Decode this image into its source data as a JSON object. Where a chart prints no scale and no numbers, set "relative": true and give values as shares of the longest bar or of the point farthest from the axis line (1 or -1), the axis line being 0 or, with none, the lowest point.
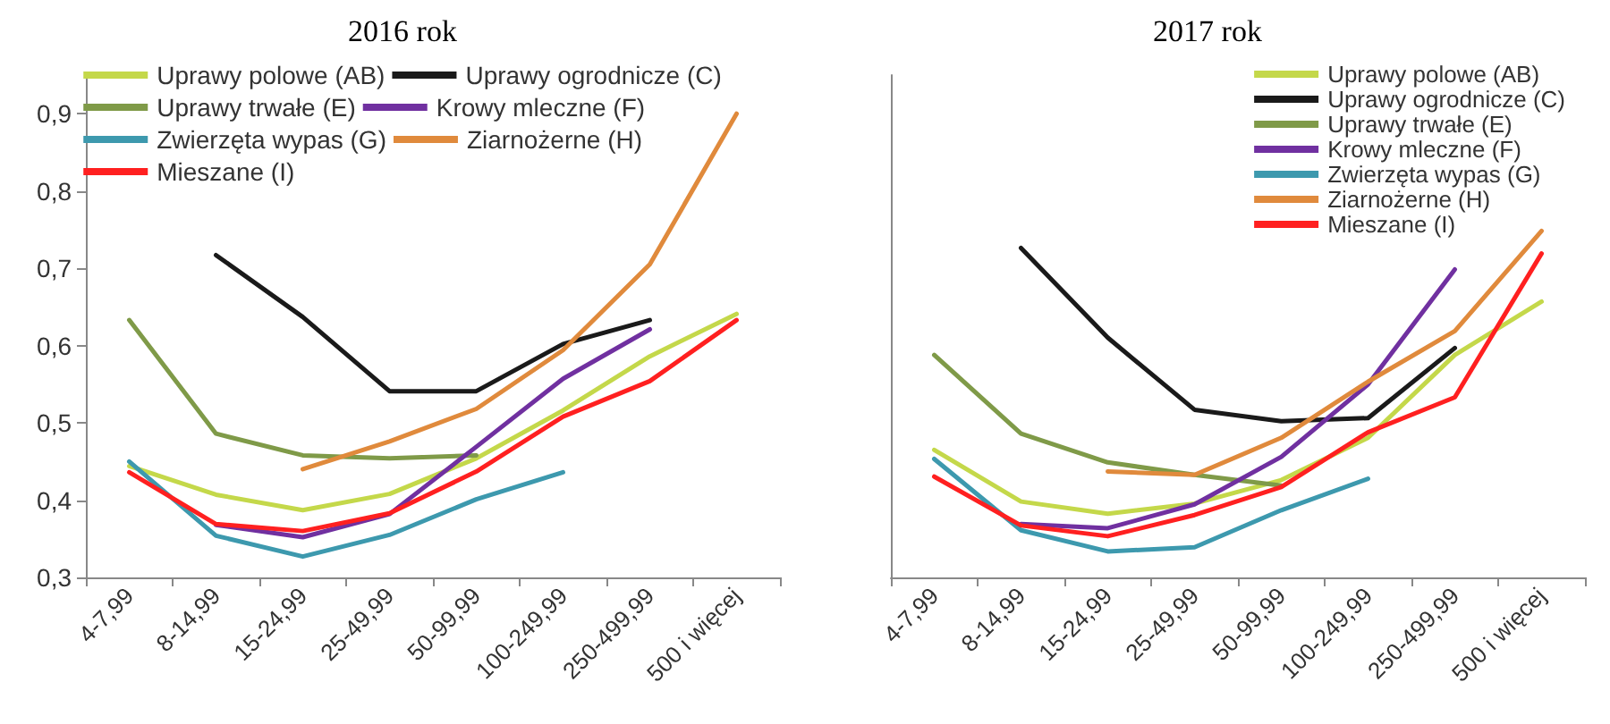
{
  "chart_data": [
    {
      "type": "line",
      "title": "2016 rok",
      "categories": [
        "4-7,99",
        "8-14,99",
        "15-24,99",
        "25-49,99",
        "50-99,99",
        "100-249,99",
        "250-499,99",
        "500 i więcej"
      ],
      "ylim": [
        0.3,
        0.95
      ],
      "yticks": [
        {
          "value": 0.3,
          "label": "0,3"
        },
        {
          "value": 0.4,
          "label": "0,4"
        },
        {
          "value": 0.5,
          "label": "0,5"
        },
        {
          "value": 0.6,
          "label": "0,6"
        },
        {
          "value": 0.7,
          "label": "0,7"
        },
        {
          "value": 0.8,
          "label": "0,8"
        },
        {
          "value": 0.9,
          "label": "0,9"
        }
      ],
      "grid": false,
      "legend": "top",
      "marker": "none",
      "line_style": "solid",
      "series": [
        {
          "name": "Uprawy polowe (AB)",
          "color": "#c4d84a",
          "values": [
            0.444,
            0.407,
            0.387,
            0.408,
            0.454,
            0.516,
            0.586,
            0.641
          ]
        },
        {
          "name": "Uprawy ogrodnicze (C)",
          "color": "#1a1a1a",
          "values": [
            null,
            0.717,
            0.637,
            0.541,
            0.541,
            0.602,
            0.633,
            null
          ]
        },
        {
          "name": "Uprawy trwałe (E)",
          "color": "#7f9a48",
          "values": [
            0.633,
            0.486,
            0.458,
            0.454,
            0.458,
            null,
            null,
            null
          ]
        },
        {
          "name": "Krowy mleczne (F)",
          "color": "#7030a0",
          "values": [
            null,
            0.368,
            0.352,
            0.382,
            0.469,
            0.557,
            0.621,
            null
          ]
        },
        {
          "name": "Zwierzęta wypas (G)",
          "color": "#3d99ae",
          "values": [
            0.45,
            0.354,
            0.327,
            0.355,
            0.401,
            0.436,
            null,
            null
          ]
        },
        {
          "name": "Ziarnożerne (H)",
          "color": "#e08a3c",
          "values": [
            null,
            null,
            0.44,
            0.476,
            0.518,
            0.594,
            0.705,
            0.9
          ]
        },
        {
          "name": "Mieszane (I)",
          "color": "#ff2020",
          "values": [
            0.436,
            0.369,
            0.36,
            0.383,
            0.437,
            0.508,
            0.554,
            0.633
          ]
        }
      ]
    },
    {
      "type": "line",
      "title": "2017 rok",
      "categories": [
        "4-7,99",
        "8-14,99",
        "15-24,99",
        "25-49,99",
        "50-99,99",
        "100-249,99",
        "250-499,99",
        "500 i więcej"
      ],
      "relative": true,
      "grid": false,
      "legend": "top right",
      "marker": "none",
      "line_style": "solid",
      "series": [
        {
          "name": "Uprawy polowe (AB)",
          "color": "#c4d84a",
          "values": [
            0.368,
            0.219,
            0.184,
            0.213,
            0.281,
            0.403,
            0.642,
            0.796
          ]
        },
        {
          "name": "Uprawy ogrodnicze (C)",
          "color": "#1a1a1a",
          "values": [
            null,
            0.951,
            0.692,
            0.484,
            0.451,
            0.46,
            0.662,
            null
          ]
        },
        {
          "name": "Uprawy trwałe (E)",
          "color": "#7f9a48",
          "values": [
            0.642,
            0.415,
            0.332,
            0.296,
            0.265,
            null,
            null,
            null
          ]
        },
        {
          "name": "Krowy mleczne (F)",
          "color": "#7030a0",
          "values": [
            null,
            0.154,
            0.142,
            0.211,
            0.348,
            0.557,
            0.889,
            null
          ]
        },
        {
          "name": "Zwierzęta wypas (G)",
          "color": "#3d99ae",
          "values": [
            0.342,
            0.136,
            0.075,
            0.087,
            0.194,
            0.285,
            null,
            null
          ]
        },
        {
          "name": "Ziarnożerne (H)",
          "color": "#e08a3c",
          "values": [
            null,
            null,
            0.306,
            0.296,
            0.403,
            0.565,
            0.711,
            1
          ]
        },
        {
          "name": "Mieszane (I)",
          "color": "#ff2020",
          "values": [
            0.291,
            0.15,
            0.119,
            0.18,
            0.261,
            0.419,
            0.52,
            0.935
          ]
        }
      ]
    }
  ]
}
